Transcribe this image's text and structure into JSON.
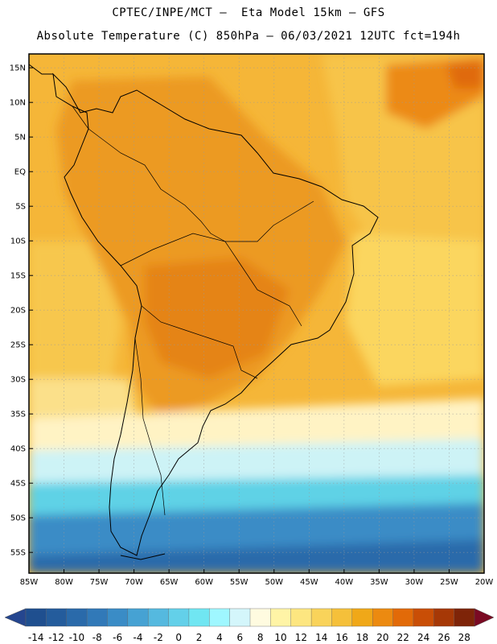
{
  "header": {
    "line1": "CPTEC/INPE/MCT –  Eta Model 15km – GFS",
    "line2": "Absolute Temperature (C) 850hPa – 06/03/2021 12UTC fct=194h"
  },
  "map": {
    "lon_range": [
      -85,
      -20
    ],
    "lat_range": [
      -58,
      17
    ],
    "lat_ticks": [
      {
        "lat": 15,
        "label": "15N"
      },
      {
        "lat": 10,
        "label": "10N"
      },
      {
        "lat": 5,
        "label": "5N"
      },
      {
        "lat": 0,
        "label": "EQ"
      },
      {
        "lat": -5,
        "label": "5S"
      },
      {
        "lat": -10,
        "label": "10S"
      },
      {
        "lat": -15,
        "label": "15S"
      },
      {
        "lat": -20,
        "label": "20S"
      },
      {
        "lat": -25,
        "label": "25S"
      },
      {
        "lat": -30,
        "label": "30S"
      },
      {
        "lat": -35,
        "label": "35S"
      },
      {
        "lat": -40,
        "label": "40S"
      },
      {
        "lat": -45,
        "label": "45S"
      },
      {
        "lat": -50,
        "label": "50S"
      },
      {
        "lat": -55,
        "label": "55S"
      }
    ],
    "lon_ticks": [
      {
        "lon": -85,
        "label": "85W"
      },
      {
        "lon": -80,
        "label": "80W"
      },
      {
        "lon": -75,
        "label": "75W"
      },
      {
        "lon": -70,
        "label": "70W"
      },
      {
        "lon": -65,
        "label": "65W"
      },
      {
        "lon": -60,
        "label": "60W"
      },
      {
        "lon": -55,
        "label": "55W"
      },
      {
        "lon": -50,
        "label": "50W"
      },
      {
        "lon": -45,
        "label": "45W"
      },
      {
        "lon": -40,
        "label": "40W"
      },
      {
        "lon": -35,
        "label": "35W"
      },
      {
        "lon": -30,
        "label": "30W"
      },
      {
        "lon": -25,
        "label": "25W"
      },
      {
        "lon": -20,
        "label": "20W"
      }
    ]
  },
  "colorbar": {
    "labels": [
      "-14",
      "-12",
      "-10",
      "-8",
      "-6",
      "-4",
      "-2",
      "0",
      "2",
      "4",
      "6",
      "8",
      "10",
      "12",
      "14",
      "16",
      "18",
      "20",
      "22",
      "24",
      "26",
      "28"
    ],
    "colors": [
      "#1f4f8f",
      "#245c9c",
      "#2a6aaa",
      "#3179b8",
      "#3a8cc6",
      "#46a2d3",
      "#55b9df",
      "#63d0e9",
      "#70e6f2",
      "#9ff7ff",
      "#d4f6fb",
      "#fffbe0",
      "#fff4a6",
      "#fde680",
      "#f9d35a",
      "#f5c03a",
      "#f0a818",
      "#ec8a10",
      "#e26a08",
      "#c94e06",
      "#a63806",
      "#7e2408"
    ],
    "low_color": "#25468f",
    "high_color": "#7a0a23"
  }
}
